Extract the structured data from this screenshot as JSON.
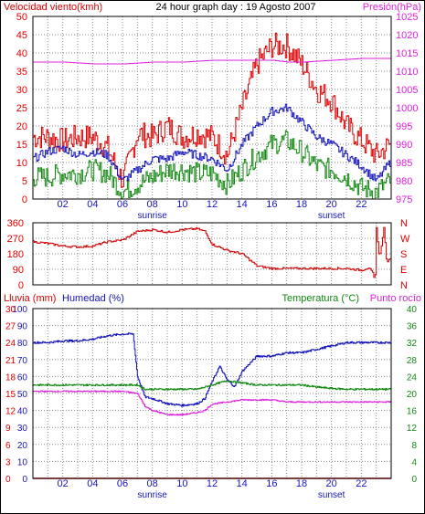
{
  "colors": {
    "wind": "#dd0000",
    "gust": "#1414bb",
    "windgreen": "#118811",
    "pressure": "#dd22dd",
    "direction": "#cc0000",
    "rain": "#dd0000",
    "humidity": "#1414bb",
    "temperature": "#118811",
    "dewpoint": "#dd22dd",
    "grid": "#8a8a8a",
    "frame": "#000000",
    "black": "#000000"
  },
  "chart_data": [
    {
      "type": "line",
      "panel": "wind-pressure",
      "title": "24 hour graph day : 19 Agosto 2007",
      "left_label": "Velocidad viento(kmh)",
      "right_label": "Presión(hPa)",
      "left_ticks": [
        "0",
        "5",
        "10",
        "15",
        "20",
        "25",
        "30",
        "35",
        "40",
        "45",
        "50"
      ],
      "right_ticks": [
        "975",
        "980",
        "985",
        "990",
        "995",
        "1000",
        "1005",
        "1010",
        "1015",
        "1020",
        "1025"
      ],
      "x_ticks": [
        "02",
        "04",
        "06",
        "08",
        "10",
        "12",
        "14",
        "16",
        "18",
        "20",
        "22"
      ],
      "markers": [
        "sunrise",
        "sunset"
      ],
      "ylim_left": [
        0,
        50
      ],
      "ylim_right": [
        975,
        1025
      ],
      "xlim": [
        0,
        24
      ],
      "series": [
        {
          "key": "wind_max",
          "color_key": "wind",
          "points": [
            [
              0,
              17
            ],
            [
              1,
              17
            ],
            [
              2,
              16
            ],
            [
              3,
              17
            ],
            [
              4,
              17
            ],
            [
              5,
              14
            ],
            [
              6,
              5
            ],
            [
              7,
              18
            ],
            [
              8,
              17
            ],
            [
              9,
              20
            ],
            [
              10,
              17
            ],
            [
              11,
              18
            ],
            [
              12,
              17
            ],
            [
              13,
              12
            ],
            [
              14,
              25
            ],
            [
              15,
              37
            ],
            [
              16,
              42
            ],
            [
              17,
              42
            ],
            [
              18,
              37
            ],
            [
              19,
              30
            ],
            [
              20,
              27
            ],
            [
              21,
              20
            ],
            [
              22,
              16
            ],
            [
              23,
              12
            ],
            [
              23.9,
              15
            ]
          ]
        },
        {
          "key": "wind_avg",
          "color_key": "gust",
          "points": [
            [
              0,
              11
            ],
            [
              1,
              13
            ],
            [
              2,
              14
            ],
            [
              3,
              12
            ],
            [
              4,
              13
            ],
            [
              5,
              12
            ],
            [
              6,
              5
            ],
            [
              7,
              8
            ],
            [
              8,
              11
            ],
            [
              9,
              11
            ],
            [
              10,
              13
            ],
            [
              11,
              12
            ],
            [
              12,
              11
            ],
            [
              13,
              8
            ],
            [
              14,
              15
            ],
            [
              15,
              20
            ],
            [
              16,
              24
            ],
            [
              17,
              25
            ],
            [
              18,
              21
            ],
            [
              19,
              17
            ],
            [
              20,
              15
            ],
            [
              21,
              12
            ],
            [
              22,
              9
            ],
            [
              23,
              5
            ],
            [
              23.9,
              10
            ]
          ]
        },
        {
          "key": "wind_min",
          "color_key": "windgreen",
          "points": [
            [
              0,
              6
            ],
            [
              1,
              6
            ],
            [
              2,
              7
            ],
            [
              3,
              7
            ],
            [
              4,
              8
            ],
            [
              5,
              7
            ],
            [
              6,
              2
            ],
            [
              7,
              4
            ],
            [
              8,
              6
            ],
            [
              9,
              8
            ],
            [
              10,
              8
            ],
            [
              11,
              7
            ],
            [
              12,
              7
            ],
            [
              13,
              4
            ],
            [
              14,
              8
            ],
            [
              15,
              12
            ],
            [
              16,
              15
            ],
            [
              17,
              16
            ],
            [
              18,
              13
            ],
            [
              19,
              9
            ],
            [
              20,
              8
            ],
            [
              21,
              6
            ],
            [
              22,
              3
            ],
            [
              23,
              2
            ],
            [
              23.9,
              5
            ]
          ]
        },
        {
          "key": "pressure",
          "color_key": "pressure",
          "axis": "right",
          "points": [
            [
              0,
              1012.5
            ],
            [
              2,
              1012.5
            ],
            [
              4,
              1012
            ],
            [
              5,
              1012
            ],
            [
              6,
              1012
            ],
            [
              8,
              1012.5
            ],
            [
              10,
              1012.5
            ],
            [
              12,
              1013
            ],
            [
              14,
              1013
            ],
            [
              16,
              1013
            ],
            [
              17,
              1012.5
            ],
            [
              18,
              1012.5
            ],
            [
              20,
              1013
            ],
            [
              22,
              1013.5
            ],
            [
              24,
              1013.5
            ]
          ]
        }
      ]
    },
    {
      "type": "line",
      "panel": "wind-direction",
      "left_ticks": [
        "0",
        "90",
        "180",
        "270",
        "360"
      ],
      "right_labels": [
        "N",
        "W",
        "S",
        "E",
        "N"
      ],
      "ylim": [
        0,
        360
      ],
      "xlim": [
        0,
        24
      ],
      "series": [
        {
          "key": "direction",
          "color_key": "direction",
          "points": [
            [
              0,
              250
            ],
            [
              1,
              240
            ],
            [
              2,
              225
            ],
            [
              3,
              220
            ],
            [
              4,
              225
            ],
            [
              5,
              250
            ],
            [
              6,
              260
            ],
            [
              7,
              310
            ],
            [
              8,
              320
            ],
            [
              9,
              305
            ],
            [
              10,
              320
            ],
            [
              11,
              325
            ],
            [
              11.5,
              310
            ],
            [
              12,
              235
            ],
            [
              13,
              200
            ],
            [
              14,
              180
            ],
            [
              15,
              110
            ],
            [
              16,
              95
            ],
            [
              18,
              95
            ],
            [
              20,
              95
            ],
            [
              21,
              95
            ],
            [
              22,
              85
            ],
            [
              22.5,
              100
            ],
            [
              22.8,
              60
            ],
            [
              22.9,
              0
            ],
            [
              23,
              330
            ],
            [
              23.2,
              150
            ],
            [
              23.5,
              330
            ],
            [
              23.7,
              120
            ],
            [
              24,
              170
            ]
          ]
        }
      ]
    },
    {
      "type": "line",
      "panel": "rain-humidity-temp",
      "left_label_rain": "Lluvia (mm)",
      "left_label_hum": "Humedad (%)",
      "right_label_temp": "Temperatura (°C)",
      "right_label_dew": "Punto rocío",
      "rain_ticks": [
        "0",
        "3",
        "6",
        "9",
        "12",
        "15",
        "18",
        "21",
        "24",
        "27",
        "30"
      ],
      "hum_ticks": [
        "0",
        "10",
        "20",
        "30",
        "40",
        "50",
        "60",
        "70",
        "80",
        "90",
        "100"
      ],
      "temp_ticks": [
        "0",
        "4",
        "8",
        "12",
        "16",
        "20",
        "24",
        "28",
        "32",
        "36",
        "40"
      ],
      "x_ticks": [
        "02",
        "04",
        "06",
        "08",
        "10",
        "12",
        "14",
        "16",
        "18",
        "20",
        "22"
      ],
      "markers": [
        "sunrise",
        "sunset"
      ],
      "xlim": [
        0,
        24
      ],
      "series": [
        {
          "key": "humidity",
          "color_key": "humidity",
          "axis": "hum",
          "points": [
            [
              0,
              80
            ],
            [
              1,
              80
            ],
            [
              2,
              81
            ],
            [
              3,
              81
            ],
            [
              4,
              82
            ],
            [
              5,
              84
            ],
            [
              6,
              85
            ],
            [
              6.7,
              85
            ],
            [
              7,
              60
            ],
            [
              7.5,
              48
            ],
            [
              8,
              47
            ],
            [
              9,
              44
            ],
            [
              10,
              43
            ],
            [
              11,
              44
            ],
            [
              11.5,
              47
            ],
            [
              12,
              57
            ],
            [
              12.5,
              66
            ],
            [
              13,
              58
            ],
            [
              13.5,
              54
            ],
            [
              14,
              63
            ],
            [
              15,
              72
            ],
            [
              16,
              72
            ],
            [
              17,
              74
            ],
            [
              18,
              74
            ],
            [
              19,
              76
            ],
            [
              20,
              78
            ],
            [
              21,
              80
            ],
            [
              22,
              80
            ],
            [
              23,
              80
            ],
            [
              24,
              80
            ]
          ]
        },
        {
          "key": "temperature",
          "color_key": "temperature",
          "axis": "temp",
          "points": [
            [
              0,
              22
            ],
            [
              2,
              22
            ],
            [
              4,
              22
            ],
            [
              6,
              22
            ],
            [
              7,
              22
            ],
            [
              7.5,
              21
            ],
            [
              8,
              21
            ],
            [
              9,
              21
            ],
            [
              10,
              21
            ],
            [
              11,
              21
            ],
            [
              12,
              22
            ],
            [
              13,
              23
            ],
            [
              14,
              22.5
            ],
            [
              15,
              22
            ],
            [
              16,
              22
            ],
            [
              17,
              22
            ],
            [
              18,
              22
            ],
            [
              19,
              21.5
            ],
            [
              20,
              21.2
            ],
            [
              21,
              21
            ],
            [
              22,
              21
            ],
            [
              23,
              21
            ],
            [
              24,
              21
            ]
          ]
        },
        {
          "key": "dewpoint",
          "color_key": "dewpoint",
          "axis": "temp",
          "points": [
            [
              0,
              20.5
            ],
            [
              2,
              20.5
            ],
            [
              4,
              20.5
            ],
            [
              6,
              20.5
            ],
            [
              7,
              20
            ],
            [
              7.5,
              17
            ],
            [
              8,
              16
            ],
            [
              9,
              15
            ],
            [
              10,
              15
            ],
            [
              11,
              15.5
            ],
            [
              11.5,
              16
            ],
            [
              12,
              17.5
            ],
            [
              13,
              18
            ],
            [
              14,
              18.5
            ],
            [
              15,
              18.5
            ],
            [
              16,
              18.5
            ],
            [
              17,
              18
            ],
            [
              18,
              18
            ],
            [
              19,
              18
            ],
            [
              20,
              18
            ],
            [
              21,
              18
            ],
            [
              22,
              18
            ],
            [
              23,
              18
            ],
            [
              24,
              18
            ]
          ]
        },
        {
          "key": "rain",
          "color_key": "rain",
          "axis": "rain",
          "points": [
            [
              0,
              0
            ],
            [
              24,
              0
            ]
          ]
        }
      ]
    }
  ]
}
